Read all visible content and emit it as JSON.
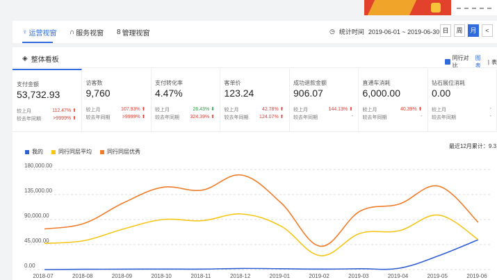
{
  "tabs": [
    {
      "label": "运营视窗",
      "icon": "bulb-icon"
    },
    {
      "label": "服务视窗",
      "icon": "headset-icon"
    },
    {
      "label": "管理视窗",
      "icon": "trophy-icon"
    }
  ],
  "stat_time": {
    "label": "统计时间",
    "value": "2019-06-01 ~ 2019-06-30"
  },
  "periods": [
    "日",
    "周",
    "月",
    "<"
  ],
  "panel_title": "整体看板",
  "compare": {
    "label": "同行对比",
    "link": "图表",
    "sep": "|",
    "extra": "表"
  },
  "metrics": [
    {
      "label": "支付金额",
      "value": "53,732.93",
      "mom_label": "较上月",
      "mom": "112.47%",
      "mom_dir": "up",
      "yoy_label": "较去年同期",
      "yoy": ">9999%",
      "yoy_dir": "up"
    },
    {
      "label": "访客数",
      "value": "9,760",
      "mom_label": "较上月",
      "mom": "107.93%",
      "mom_dir": "up",
      "yoy_label": "较去年同期",
      "yoy": ">9999%",
      "yoy_dir": "up"
    },
    {
      "label": "支付转化率",
      "value": "4.47%",
      "mom_label": "较上月",
      "mom": "26.43%",
      "mom_dir": "down",
      "yoy_label": "较去年同期",
      "yoy": "324.39%",
      "yoy_dir": "up"
    },
    {
      "label": "客单价",
      "value": "123.24",
      "mom_label": "较上月",
      "mom": "42.78%",
      "mom_dir": "up",
      "yoy_label": "较去年同期",
      "yoy": "124.07%",
      "yoy_dir": "up"
    },
    {
      "label": "成功退款金额",
      "value": "906.07",
      "mom_label": "较上月",
      "mom": "144.13%",
      "mom_dir": "up",
      "yoy_label": "较去年同期",
      "yoy": "-",
      "yoy_dir": ""
    },
    {
      "label": "直通车消耗",
      "value": "6,000.00",
      "mom_label": "较上月",
      "mom": "40.39%",
      "mom_dir": "up",
      "yoy_label": "较去年同期",
      "yoy": "-",
      "yoy_dir": ""
    },
    {
      "label": "钻石展位消耗",
      "value": "0.00",
      "mom_label": "较上月",
      "mom": "-",
      "mom_dir": "",
      "yoy_label": "较去年同期",
      "yoy": "-",
      "yoy_dir": ""
    }
  ],
  "year_sum": "最近12月累计：9.3",
  "colors": {
    "accent": "#2f6bdc",
    "me": "#2f5fd0",
    "avg": "#f5c518",
    "best": "#f07c2a"
  },
  "chart_data": {
    "type": "line",
    "legend": [
      "我的",
      "同行同层平均",
      "同行同层优秀"
    ],
    "x": [
      "2018-07",
      "2018-08",
      "2018-09",
      "2018-10",
      "2018-11",
      "2018-12",
      "2019-01",
      "2019-02",
      "2019-03",
      "2019-04",
      "2019-05",
      "2019-06"
    ],
    "y_ticks": [
      "180,000.00",
      "135,000.00",
      "90,000.00",
      "45,000.00",
      "0.00"
    ],
    "ylim": [
      0,
      180000
    ],
    "series": [
      {
        "name": "我的",
        "values": [
          0,
          500,
          700,
          900,
          800,
          2000,
          1500,
          800,
          1500,
          2500,
          25000,
          53733
        ]
      },
      {
        "name": "同行同层平均",
        "values": [
          47000,
          52000,
          73000,
          90000,
          88000,
          100000,
          78000,
          25000,
          65000,
          70000,
          98000,
          54000
        ]
      },
      {
        "name": "同行同层优秀",
        "values": [
          73000,
          83000,
          120000,
          148000,
          143000,
          170000,
          120000,
          42000,
          105000,
          118000,
          150000,
          85000
        ]
      }
    ]
  }
}
